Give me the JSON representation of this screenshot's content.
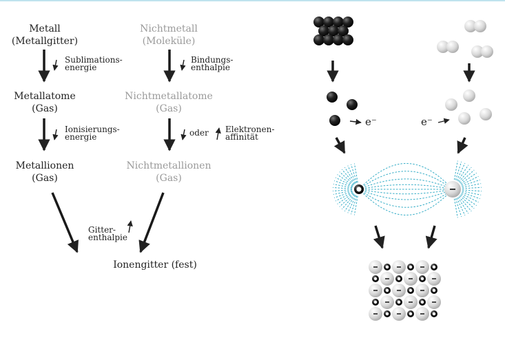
{
  "left_scheme": {
    "metal": {
      "line1": "Metall",
      "line2": "(Metallgitter)"
    },
    "nonmetal": {
      "line1": "Nichtmetall",
      "line2": "(Moleküle)"
    },
    "metal_atoms": {
      "line1": "Metallatome",
      "line2": "(Gas)"
    },
    "nonmetal_atoms": {
      "line1": "Nichtmetallatome",
      "line2": "(Gas)"
    },
    "metal_ions": {
      "line1": "Metallionen",
      "line2": "(Gas)"
    },
    "nonmetal_ions": {
      "line1": "Nichtmetallionen",
      "line2": "(Gas)"
    },
    "ionic_lattice": "Ionengitter (fest)",
    "sublimation": {
      "line1": "Sublimations-",
      "line2": "energie"
    },
    "binding": {
      "line1": "Bindungs-",
      "line2": "enthalpie"
    },
    "ionization": {
      "line1": "Ionisierungs-",
      "line2": "energie"
    },
    "oder": "oder",
    "affinity": {
      "line1": "Elektronen-",
      "line2": "affinität"
    },
    "lattice": {
      "line1": "Gitter-",
      "line2": "enthalpie"
    }
  },
  "right_scheme": {
    "electron_left": "e⁻",
    "electron_right": "e⁻",
    "cation_sign": "+",
    "anion_sign": "−"
  },
  "colors": {
    "label_dark": "#222222",
    "label_grey": "#9a9a9a",
    "field_lines": "#2aa8c4",
    "top_rule": "#bfe3ee"
  }
}
